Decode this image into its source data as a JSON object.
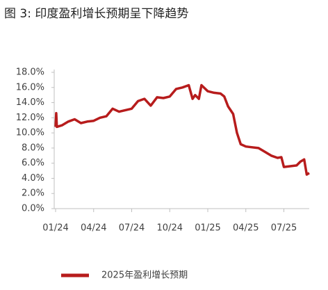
{
  "chart_data": {
    "type": "line",
    "title": "图 3:  印度盈利增长预期呈下降趋势",
    "x": [
      0,
      0.05,
      0.1,
      0.5,
      1,
      1.5,
      2,
      2.5,
      3,
      3.5,
      4,
      4.5,
      5,
      5.5,
      6,
      6.5,
      7,
      7.5,
      8,
      8.5,
      9,
      9.5,
      10,
      10.5,
      10.8,
      11,
      11.3,
      11.5,
      12,
      12.5,
      13,
      13.3,
      13.6,
      14,
      14.3,
      14.6,
      15,
      15.5,
      16,
      16.5,
      17,
      17.5,
      17.8,
      18,
      18.5,
      19,
      19.3,
      19.6,
      19.8,
      20
    ],
    "series": [
      {
        "name": "2025年盈利增长预期",
        "color": "#b71c1c",
        "values": [
          10.8,
          12.6,
          10.8,
          11.0,
          11.5,
          11.8,
          11.3,
          11.5,
          11.6,
          12.0,
          12.2,
          13.2,
          12.8,
          13.0,
          13.2,
          14.2,
          14.5,
          13.6,
          14.7,
          14.6,
          14.8,
          15.8,
          16.0,
          16.3,
          14.5,
          15.0,
          14.5,
          16.3,
          15.5,
          15.3,
          15.2,
          14.8,
          13.5,
          12.5,
          10.0,
          8.5,
          8.2,
          8.1,
          8.0,
          7.5,
          7.0,
          6.7,
          6.8,
          5.5,
          5.6,
          5.7,
          6.2,
          6.5,
          4.5,
          4.7
        ]
      }
    ],
    "xlim": [
      0,
      20
    ],
    "xticks": [
      {
        "value": 0,
        "label": "01/24"
      },
      {
        "value": 3,
        "label": "04/24"
      },
      {
        "value": 6,
        "label": "07/24"
      },
      {
        "value": 9,
        "label": "10/24"
      },
      {
        "value": 12,
        "label": "01/25"
      },
      {
        "value": 15,
        "label": "04/25"
      },
      {
        "value": 18,
        "label": "07/25"
      }
    ],
    "ylim": [
      0,
      18
    ],
    "yticks": [
      {
        "value": 0,
        "label": "0.0%"
      },
      {
        "value": 2,
        "label": "2.0%"
      },
      {
        "value": 4,
        "label": "4.0%"
      },
      {
        "value": 6,
        "label": "6.0%"
      },
      {
        "value": 8,
        "label": "8.0%"
      },
      {
        "value": 10,
        "label": "10.0%"
      },
      {
        "value": 12,
        "label": "12.0%"
      },
      {
        "value": 14,
        "label": "14.0%"
      },
      {
        "value": 16,
        "label": "16.0%"
      },
      {
        "value": 18,
        "label": "18.0%"
      }
    ],
    "grid": false
  }
}
